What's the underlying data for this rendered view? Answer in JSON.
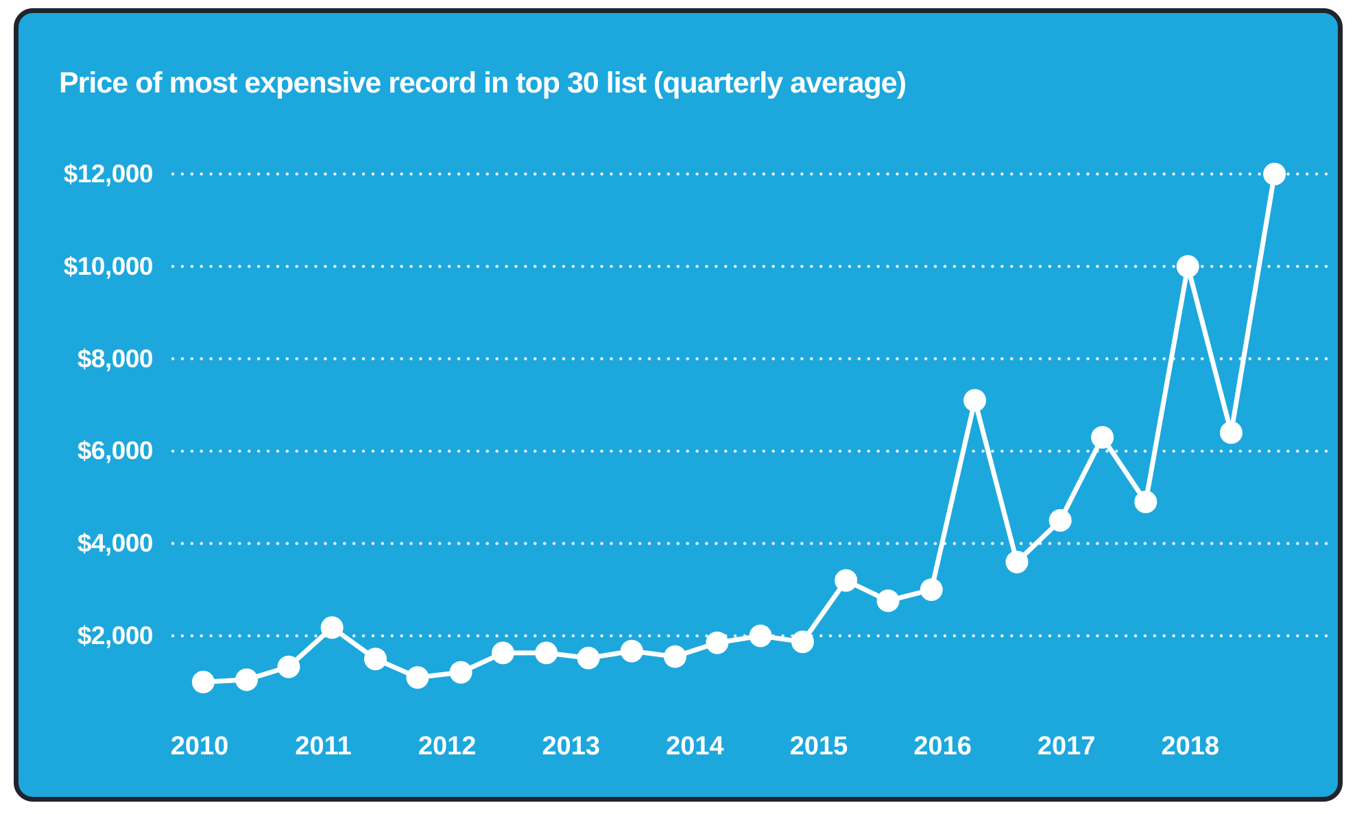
{
  "page": {
    "background": "#ffffff"
  },
  "card": {
    "background": "#1CA8DD",
    "border_color": "#20242C",
    "text_color": "#ffffff"
  },
  "chart_data": {
    "type": "line",
    "title": "Price of most expensive record in top 30 list (quarterly average)",
    "series_name": "Price of most expensive record (quarterly average)",
    "x": [
      2010.03,
      2010.38,
      2010.72,
      2011.07,
      2011.42,
      2011.76,
      2012.11,
      2012.45,
      2012.8,
      2013.14,
      2013.49,
      2013.84,
      2014.18,
      2014.53,
      2014.87,
      2015.22,
      2015.56,
      2015.91,
      2016.26,
      2016.6,
      2016.95,
      2017.29,
      2017.64,
      2017.98,
      2018.33,
      2018.68
    ],
    "values": [
      1000,
      1050,
      1330,
      2180,
      1500,
      1100,
      1210,
      1630,
      1630,
      1520,
      1670,
      1550,
      1850,
      2000,
      1870,
      3200,
      2760,
      3000,
      7100,
      3600,
      4500,
      6300,
      4900,
      10000,
      6400,
      12000
    ],
    "x_ticks": [
      "2010",
      "2011",
      "2012",
      "2013",
      "2014",
      "2015",
      "2016",
      "2017",
      "2018"
    ],
    "x_tick_values": [
      2010,
      2011,
      2012,
      2013,
      2014,
      2015,
      2016,
      2017,
      2018
    ],
    "y_ticks": [
      "$2,000",
      "$4,000",
      "$6,000",
      "$8,000",
      "$10,000",
      "$12,000"
    ],
    "y_tick_values": [
      2000,
      4000,
      6000,
      8000,
      10000,
      12000
    ],
    "ylim": [
      800,
      12700
    ],
    "xlim": [
      2009.6,
      2019.2
    ],
    "grid": "horizontal-dotted",
    "legend": "none",
    "line_color": "#ffffff",
    "marker": "circle"
  }
}
